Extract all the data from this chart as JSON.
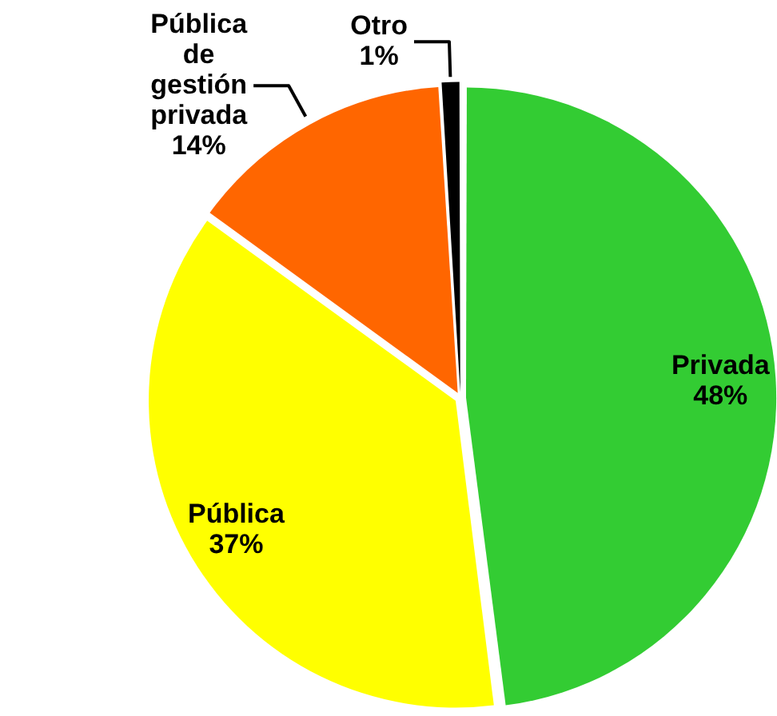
{
  "chart_data": {
    "type": "pie",
    "categories": [
      "Privada",
      "Pública",
      "Pública de gestión privada",
      "Otro"
    ],
    "values": [
      48,
      37,
      14,
      1
    ],
    "value_labels": [
      "48%",
      "37%",
      "14%",
      "1%"
    ],
    "colors": [
      "#33cc33",
      "#ffff00",
      "#ff6600",
      "#000000"
    ],
    "legend": false
  }
}
